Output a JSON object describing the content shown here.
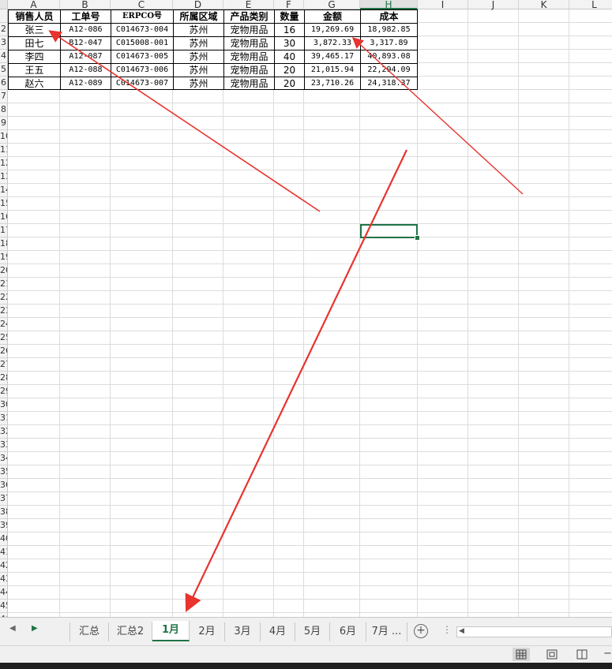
{
  "columns": [
    "A",
    "B",
    "C",
    "D",
    "E",
    "F",
    "G",
    "H",
    "I",
    "J",
    "K",
    "L"
  ],
  "selected_column": "H",
  "row_numbers": [
    "2",
    "3",
    "4",
    "5",
    "6",
    "7",
    "8",
    "9",
    "10",
    "11",
    "12",
    "13",
    "14",
    "15",
    "16",
    "17",
    "18",
    "19",
    "20",
    "21",
    "22",
    "23",
    "24",
    "25",
    "26",
    "27",
    "28",
    "29",
    "30",
    "31",
    "32",
    "33",
    "34",
    "35",
    "36",
    "37",
    "38",
    "39",
    "40",
    "41",
    "42",
    "43",
    "44",
    "45",
    "46"
  ],
  "table": {
    "headers": [
      "销售人员",
      "工单号",
      "ERPCO号",
      "所属区域",
      "产品类别",
      "数量",
      "金额",
      "成本"
    ],
    "rows": [
      [
        "张三",
        "A12-086",
        "C014673-004",
        "苏州",
        "宠物用品",
        "16",
        "19,269.69",
        "18,982.85"
      ],
      [
        "田七",
        "B12-047",
        "C015008-001",
        "苏州",
        "宠物用品",
        "30",
        "3,872.33",
        "3,317.89"
      ],
      [
        "李四",
        "A12-087",
        "C014673-005",
        "苏州",
        "宠物用品",
        "40",
        "39,465.17",
        "40,893.08"
      ],
      [
        "王五",
        "A12-088",
        "C014673-006",
        "苏州",
        "宠物用品",
        "20",
        "21,015.94",
        "22,294.09"
      ],
      [
        "赵六",
        "A12-089",
        "C014673-007",
        "苏州",
        "宠物用品",
        "20",
        "23,710.26",
        "24,318.37"
      ]
    ]
  },
  "sheet_tabs": [
    "汇总",
    "汇总2",
    "1月",
    "2月",
    "3月",
    "4月",
    "5月",
    "6月",
    "7月 ..."
  ],
  "active_tab": "1月",
  "colors": {
    "accent": "#217346",
    "annotation_arrow": "#e8332e",
    "grid_line": "#d4d4d4"
  }
}
